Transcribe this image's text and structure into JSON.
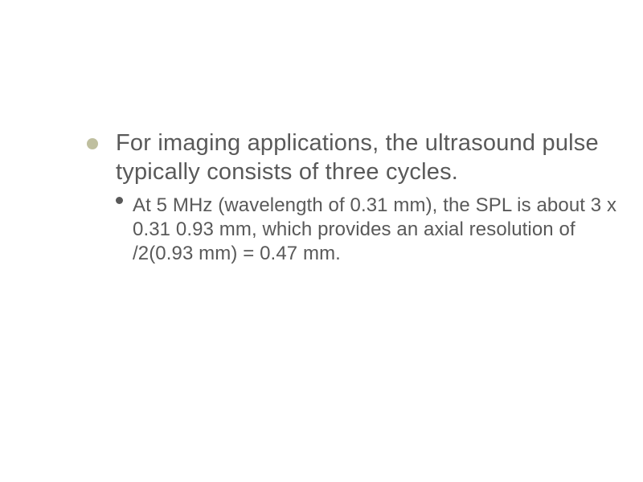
{
  "slide": {
    "mainBullet": {
      "text": "For imaging applications, the ultrasound pulse typically consists of three cycles.",
      "bulletColor": "#bfbf9f",
      "textColor": "#595959",
      "fontSize": 29
    },
    "subBullet": {
      "text": "At 5 MHz (wavelength of 0.31 mm), the SPL is about 3 x 0.31 0.93 mm, which provides an axial resolution of /2(0.93 mm) = 0.47 mm.",
      "bulletColor": "#595959",
      "textColor": "#595959",
      "fontSize": 24
    },
    "backgroundColor": "#ffffff"
  }
}
